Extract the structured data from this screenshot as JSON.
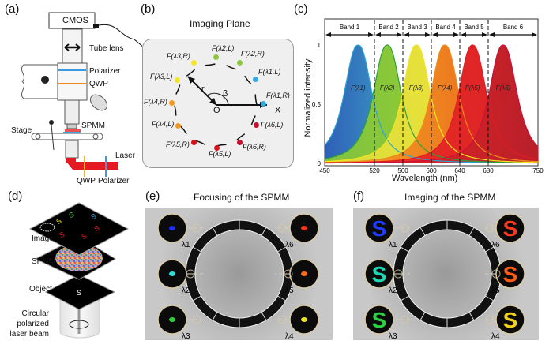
{
  "panels": {
    "a": {
      "label": "(a)",
      "cmos": "CMOS",
      "tube_lens": "Tube lens",
      "polarizer": "Polarizer",
      "qwp": "QWP",
      "spmm": "SPMM",
      "stage": "Stage",
      "laser": "Laser",
      "qwp_bottom": "QWP",
      "polarizer_bottom": "Polarizer"
    },
    "b": {
      "label": "(b)",
      "title": "Imaging Plane",
      "r": "r",
      "beta": "β",
      "origin": "O",
      "axis": "X",
      "points": [
        {
          "text": "F(λ2,L)",
          "color": "#8dc63f"
        },
        {
          "text": "F(λ2,R)",
          "color": "#8dc63f"
        },
        {
          "text": "F(λ1,L)",
          "color": "#3ba7e0"
        },
        {
          "text": "F(λ1,R)",
          "color": "#3ba7e0"
        },
        {
          "text": "F(λ6,L)",
          "color": "#c8102e"
        },
        {
          "text": "F(λ6,R)",
          "color": "#c8102e"
        },
        {
          "text": "F(λ5,L)",
          "color": "#d7141a"
        },
        {
          "text": "F(λ5,R)",
          "color": "#d7141a"
        },
        {
          "text": "F(λ4,L)",
          "color": "#f39a1e"
        },
        {
          "text": "F(λ4,R)",
          "color": "#f39a1e"
        },
        {
          "text": "F(λ3,L)",
          "color": "#f5e625"
        },
        {
          "text": "F(λ3,R)",
          "color": "#f5e625"
        }
      ]
    },
    "d": {
      "label": "(d)",
      "image": "Image",
      "spmm": "SPMM",
      "object": "Object",
      "beam": [
        "Circular",
        "polarized",
        "laser beam"
      ]
    },
    "e": {
      "label": "(e)",
      "title": "Focusing of the SPMM",
      "lambdas_left": [
        "λ1",
        "λ2",
        "λ3"
      ],
      "lambdas_right": [
        "λ6",
        "λ5",
        "λ4"
      ],
      "spot_colors_left": [
        "#1a2cff",
        "#27e0d8",
        "#2fcf3a"
      ],
      "spot_colors_right": [
        "#ff3018",
        "#ff6a12",
        "#e6e620"
      ]
    },
    "f": {
      "label": "(f)",
      "title": "Imaging of the SPMM",
      "lambdas_left": [
        "λ1",
        "λ2",
        "λ3"
      ],
      "lambdas_right": [
        "λ6",
        "λ5",
        "λ4"
      ],
      "letter": "S",
      "s_colors_left": [
        "#1f3cff",
        "#21d6b5",
        "#2ecf43"
      ],
      "s_colors_right": [
        "#ff3a1c",
        "#ff5a14",
        "#f0d21e"
      ]
    }
  },
  "chart_data": {
    "panel_label": "(c)",
    "type": "area",
    "xlabel": "Wavelength (nm)",
    "ylabel": "Normalized intensity",
    "xlim": [
      450,
      750
    ],
    "ylim": [
      0,
      1.15
    ],
    "xticks": [
      450,
      520,
      560,
      600,
      640,
      680,
      750
    ],
    "yticks": [
      0,
      0.5,
      1
    ],
    "ytick_labels": [
      "0",
      "0.5",
      "1"
    ],
    "band_boundaries": [
      520,
      560,
      600,
      640,
      680
    ],
    "bands": [
      "Band 1",
      "Band 2",
      "Band 3",
      "Band 4",
      "Band 5",
      "Band 6"
    ],
    "series": [
      {
        "name": "F(λ1)",
        "peak": 497,
        "color": "#2aa6d6",
        "fill": [
          "#2f5fb8",
          "#3fb6c9",
          "#59b847"
        ]
      },
      {
        "name": "F(λ2)",
        "peak": 538,
        "color": "#2f9f3a",
        "fill": [
          "#7fc241",
          "#8fcb34",
          "#9bd030"
        ]
      },
      {
        "name": "F(λ3)",
        "peak": 579,
        "color": "#f3e51c",
        "fill": [
          "#d6dd3a",
          "#e8e03a",
          "#f2c92c"
        ]
      },
      {
        "name": "F(λ4)",
        "peak": 619,
        "color": "#f08a1a",
        "fill": [
          "#f2a424",
          "#ee8420",
          "#e95c20"
        ]
      },
      {
        "name": "F(λ5)",
        "peak": 658,
        "color": "#e01c24",
        "fill": [
          "#ef4328",
          "#e52a25",
          "#d81f26"
        ]
      },
      {
        "name": "F(λ6)",
        "peak": 701,
        "color": "#c8103a",
        "fill": [
          "#e63328",
          "#d82226",
          "#b8202a"
        ]
      }
    ]
  }
}
